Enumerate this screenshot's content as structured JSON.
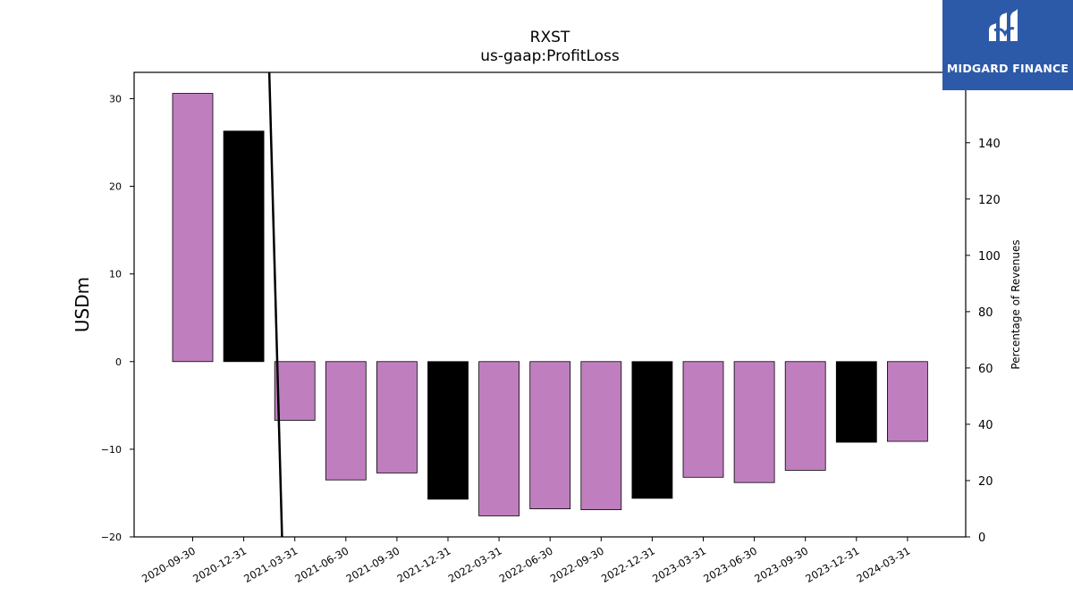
{
  "chart_data": {
    "type": "bar",
    "title": "RXST",
    "subtitle": "us-gaap:ProfitLoss",
    "ylabel": "USDm",
    "ylabel_right": "Percentage of Revenues",
    "categories": [
      "2020-09-30",
      "2020-12-31",
      "2021-03-31",
      "2021-06-30",
      "2021-09-30",
      "2021-12-31",
      "2022-03-31",
      "2022-06-30",
      "2022-09-30",
      "2022-12-31",
      "2023-03-31",
      "2023-06-30",
      "2023-09-30",
      "2023-12-31",
      "2024-03-31"
    ],
    "values": [
      30.6,
      26.3,
      -6.7,
      -13.5,
      -12.7,
      -15.7,
      -17.6,
      -16.8,
      -16.9,
      -15.6,
      -13.2,
      -13.8,
      -12.4,
      -9.2,
      -9.1
    ],
    "bar_colors": [
      "#bf7fbf",
      "#000000",
      "#bf7fbf",
      "#bf7fbf",
      "#bf7fbf",
      "#000000",
      "#bf7fbf",
      "#bf7fbf",
      "#bf7fbf",
      "#000000",
      "#bf7fbf",
      "#bf7fbf",
      "#bf7fbf",
      "#000000",
      "#bf7fbf"
    ],
    "ylim": [
      -20,
      33
    ],
    "yticks": [
      -20,
      -10,
      0,
      10,
      20,
      30
    ],
    "ylim_right": [
      0,
      165
    ],
    "yticks_right": [
      0,
      20,
      40,
      60,
      80,
      100,
      120,
      140
    ],
    "line_series": {
      "x_index": [
        1.5,
        1.75
      ],
      "values": [
        165,
        0
      ]
    },
    "grid": false,
    "legend": "none"
  },
  "logo": {
    "text": "MIDGARD FINANCE"
  }
}
